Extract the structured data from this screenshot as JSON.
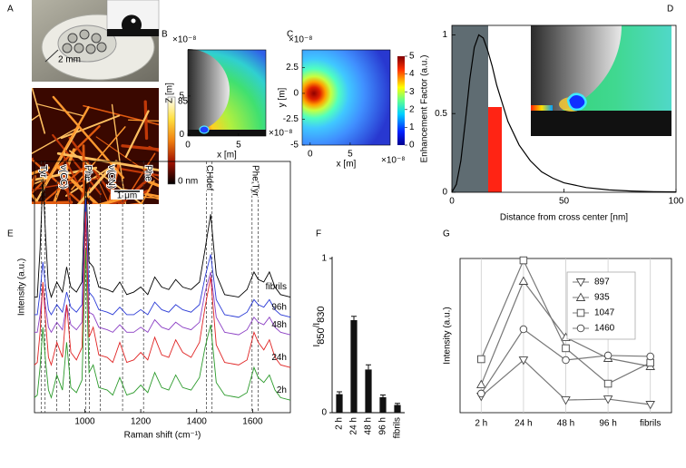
{
  "panel_labels": [
    "A",
    "B",
    "C",
    "D",
    "E",
    "F",
    "G"
  ],
  "panel_a": {
    "scale_label": "2 mm",
    "colorbar_max": "850",
    "colorbar_min": "0 nm",
    "scale_bar": "1 μm"
  },
  "simulations": [
    {
      "x_label": "x [m]",
      "y_label": "Z [m]",
      "xlim": [
        0,
        7.7
      ],
      "ylim": [
        -0.2,
        11
      ],
      "xticks": [
        0,
        5
      ],
      "yticks": [
        0,
        5
      ],
      "y_exponent": "×10⁻⁸",
      "x_exponent": "×10⁻⁸"
    },
    {
      "x_label": "x [m]",
      "y_label": "y [m]",
      "xlim": [
        -1,
        10
      ],
      "ylim": [
        -5,
        4.2
      ],
      "xticks": [
        0,
        5
      ],
      "yticks": [
        -5,
        -2.5,
        0,
        2.5
      ],
      "y_exponent": "×10⁻⁸",
      "x_exponent": "×10⁻⁸",
      "colorbar_lim": [
        0,
        5
      ],
      "colorbar_ticks": [
        0,
        1,
        2,
        3,
        4,
        5
      ]
    }
  ],
  "chart_data": [
    {
      "type": "line",
      "x_label": "Distance from cross center [nm]",
      "y_label": "Enhancement Factor (a.u.)",
      "x": [
        0,
        2,
        4,
        6,
        8,
        10,
        12,
        14,
        16,
        18,
        20,
        25,
        30,
        35,
        40,
        45,
        50,
        60,
        70,
        80,
        90,
        100
      ],
      "values": [
        0,
        0.05,
        0.2,
        0.45,
        0.72,
        0.92,
        1.0,
        0.98,
        0.9,
        0.8,
        0.68,
        0.45,
        0.3,
        0.2,
        0.13,
        0.09,
        0.06,
        0.03,
        0.015,
        0.008,
        0.004,
        0.002
      ],
      "color": "#000000",
      "xlim": [
        0,
        100
      ],
      "ylim": [
        0,
        1.06
      ],
      "xticks": [
        0,
        50,
        100
      ],
      "yticks": [
        0,
        0.5,
        1
      ]
    },
    {
      "type": "line",
      "x_label": "Raman shift (cm⁻¹)",
      "y_label": "Intensity (a.u.)",
      "legend": "inline",
      "x": [
        820,
        830,
        840,
        850,
        860,
        870,
        880,
        900,
        920,
        935,
        950,
        970,
        990,
        1003,
        1015,
        1030,
        1050,
        1080,
        1100,
        1125,
        1150,
        1175,
        1200,
        1225,
        1250,
        1275,
        1300,
        1325,
        1350,
        1380,
        1410,
        1430,
        1450,
        1470,
        1500,
        1550,
        1580,
        1605,
        1620,
        1640,
        1660,
        1680,
        1700,
        1735
      ],
      "series": [
        {
          "name": "fibrils",
          "color": "#000000",
          "values": [
            4.6,
            4.6,
            6.5,
            9.3,
            7.0,
            5.0,
            4.6,
            5.2,
            4.8,
            5.8,
            5.0,
            4.8,
            5.2,
            9.5,
            6.0,
            5.8,
            5.0,
            4.9,
            4.8,
            5.2,
            4.7,
            4.8,
            5.0,
            4.7,
            5.4,
            5.0,
            4.9,
            5.3,
            5.0,
            4.9,
            5.2,
            6.5,
            7.9,
            5.5,
            4.7,
            4.6,
            4.9,
            5.6,
            5.3,
            5.2,
            5.6,
            5.0,
            4.7,
            4.6
          ]
        },
        {
          "name": "96h",
          "color": "#2b3bd6",
          "values": [
            3.9,
            3.9,
            4.8,
            6.0,
            5.0,
            4.1,
            3.9,
            4.3,
            4.0,
            4.8,
            4.2,
            4.0,
            4.3,
            8.5,
            4.8,
            4.6,
            4.1,
            4.0,
            3.9,
            4.2,
            3.9,
            3.9,
            4.1,
            3.9,
            4.4,
            4.1,
            4.0,
            4.3,
            4.1,
            4.0,
            4.3,
            5.4,
            6.3,
            4.5,
            3.9,
            3.8,
            4.0,
            4.5,
            4.3,
            4.2,
            4.5,
            4.1,
            3.9,
            3.8
          ]
        },
        {
          "name": "48h",
          "color": "#8b3fc4",
          "values": [
            3.2,
            3.2,
            3.9,
            5.0,
            4.2,
            3.4,
            3.2,
            3.6,
            3.3,
            4.3,
            3.5,
            3.3,
            3.6,
            7.8,
            4.0,
            3.9,
            3.4,
            3.3,
            3.2,
            3.5,
            3.2,
            3.2,
            3.4,
            3.2,
            3.7,
            3.4,
            3.3,
            3.6,
            3.4,
            3.3,
            3.6,
            4.8,
            5.6,
            3.8,
            3.2,
            3.1,
            3.3,
            3.8,
            3.6,
            3.5,
            3.8,
            3.4,
            3.2,
            3.1
          ]
        },
        {
          "name": "24h",
          "color": "#e02424",
          "values": [
            1.9,
            2.0,
            3.2,
            5.2,
            3.6,
            2.2,
            1.9,
            2.8,
            2.2,
            4.3,
            2.4,
            2.1,
            2.6,
            8.0,
            3.0,
            3.4,
            2.3,
            2.2,
            2.0,
            2.8,
            2.0,
            2.1,
            2.4,
            2.1,
            3.0,
            2.3,
            2.2,
            2.9,
            2.4,
            2.2,
            2.8,
            4.2,
            5.4,
            2.7,
            2.0,
            1.9,
            2.1,
            3.2,
            2.8,
            2.5,
            2.9,
            2.2,
            1.9,
            1.8
          ]
        },
        {
          "name": "2h",
          "color": "#2b9a2b",
          "values": [
            0.6,
            0.7,
            1.8,
            3.4,
            2.0,
            0.9,
            0.6,
            1.5,
            0.9,
            2.8,
            1.0,
            0.8,
            1.3,
            6.5,
            1.6,
            1.9,
            1.0,
            0.9,
            0.7,
            1.4,
            0.7,
            0.8,
            1.1,
            0.8,
            1.6,
            1.0,
            0.9,
            1.5,
            1.0,
            0.9,
            1.4,
            2.6,
            3.5,
            1.2,
            0.7,
            0.6,
            0.8,
            1.8,
            1.4,
            1.2,
            1.5,
            0.9,
            0.6,
            0.5
          ]
        }
      ],
      "annotations": [
        {
          "text": "Tyr",
          "x": [
            845,
            858
          ]
        },
        {
          "text": "ν(CC)",
          "x": [
            900,
            945
          ],
          "bracket": true
        },
        {
          "text": "Phe",
          "x": [
            1003,
            1016
          ]
        },
        {
          "text": "ν(CN)",
          "x": [
            1055,
            1135
          ],
          "bracket": true
        },
        {
          "text": "Phe",
          "x": [
            1210
          ]
        },
        {
          "text": "CHdef",
          "x": [
            1435,
            1455
          ]
        },
        {
          "text": "Phe,Tyr",
          "x": [
            1598,
            1620
          ],
          "bracket": true
        }
      ],
      "xlim": [
        820,
        1735
      ],
      "ylim": [
        0,
        10
      ],
      "xticks": [
        1000,
        1200,
        1400,
        1600
      ]
    },
    {
      "type": "bar",
      "y_label": [
        {
          "text": "I"
        },
        {
          "text": "850",
          "sub": true
        },
        {
          "text": "/I"
        },
        {
          "text": "830",
          "sub": true
        }
      ],
      "categories": [
        "2 h",
        "24 h",
        "48 h",
        "96 h",
        "fibrils"
      ],
      "values": [
        0.12,
        0.6,
        0.28,
        0.1,
        0.05
      ],
      "errors": [
        0.015,
        0.025,
        0.03,
        0.015,
        0.01
      ],
      "color": "#111111",
      "ylim": [
        0,
        1
      ],
      "yticks": [
        0,
        1
      ]
    },
    {
      "type": "line",
      "y_label": "Intensity (a.u.)",
      "grid": "x",
      "legend": "upper right",
      "categories": [
        "2 h",
        "24 h",
        "48 h",
        "96 h",
        "fibrils"
      ],
      "series": [
        {
          "name": "897",
          "color": "#777777",
          "marker": "triangle-down",
          "values": [
            1.06,
            3.41,
            0.82,
            0.88,
            0.53
          ]
        },
        {
          "name": "935",
          "color": "#777777",
          "marker": "triangle-up",
          "values": [
            1.82,
            8.53,
            4.88,
            3.53,
            3.0
          ]
        },
        {
          "name": "1047",
          "color": "#777777",
          "marker": "square",
          "values": [
            3.47,
            9.88,
            4.18,
            1.88,
            3.24
          ]
        },
        {
          "name": "1460",
          "color": "#777777",
          "marker": "circle",
          "values": [
            1.24,
            5.41,
            3.41,
            3.71,
            3.65
          ]
        }
      ],
      "ylim": [
        0,
        10
      ]
    }
  ]
}
